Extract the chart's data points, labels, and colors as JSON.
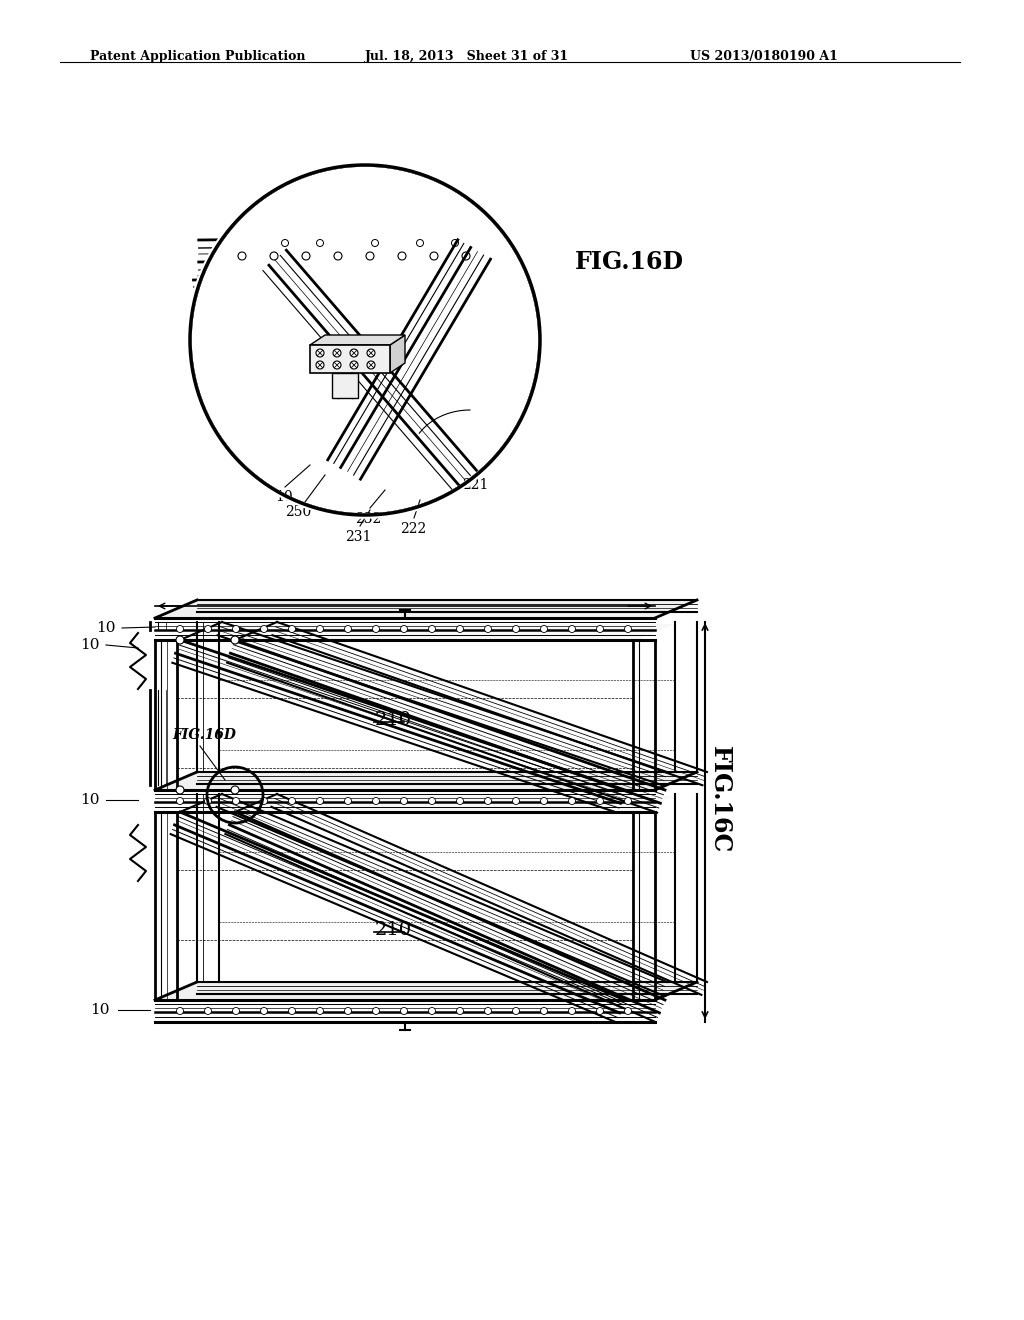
{
  "header_left": "Patent Application Publication",
  "header_mid": "Jul. 18, 2013   Sheet 31 of 31",
  "header_right": "US 2013/0180190 A1",
  "fig16d_label": "FIG.16D",
  "fig16c_label": "FIG.16C",
  "bg_color": "#ffffff",
  "line_color": "#000000",
  "gray_fill": "#e8e8e8",
  "light_gray": "#f2f2f2"
}
